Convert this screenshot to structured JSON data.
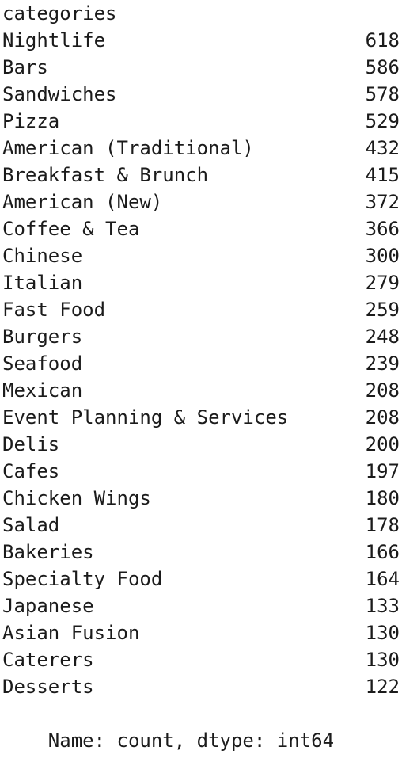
{
  "series": {
    "index_name": "categories",
    "rows": [
      {
        "label": "Nightlife",
        "value": "618"
      },
      {
        "label": "Bars",
        "value": "586"
      },
      {
        "label": "Sandwiches",
        "value": "578"
      },
      {
        "label": "Pizza",
        "value": "529"
      },
      {
        "label": "American (Traditional)",
        "value": "432"
      },
      {
        "label": "Breakfast & Brunch",
        "value": "415"
      },
      {
        "label": "American (New)",
        "value": "372"
      },
      {
        "label": "Coffee & Tea",
        "value": "366"
      },
      {
        "label": "Chinese",
        "value": "300"
      },
      {
        "label": "Italian",
        "value": "279"
      },
      {
        "label": "Fast Food",
        "value": "259"
      },
      {
        "label": "Burgers",
        "value": "248"
      },
      {
        "label": "Seafood",
        "value": "239"
      },
      {
        "label": "Mexican",
        "value": "208"
      },
      {
        "label": "Event Planning & Services",
        "value": "208"
      },
      {
        "label": "Delis",
        "value": "200"
      },
      {
        "label": "Cafes",
        "value": "197"
      },
      {
        "label": "Chicken Wings",
        "value": "180"
      },
      {
        "label": "Salad",
        "value": "178"
      },
      {
        "label": "Bakeries",
        "value": "166"
      },
      {
        "label": "Specialty Food",
        "value": "164"
      },
      {
        "label": "Japanese",
        "value": "133"
      },
      {
        "label": "Asian Fusion",
        "value": "130"
      },
      {
        "label": "Caterers",
        "value": "130"
      },
      {
        "label": "Desserts",
        "value": "122"
      }
    ],
    "footer": "Name: count, dtype: int64"
  }
}
